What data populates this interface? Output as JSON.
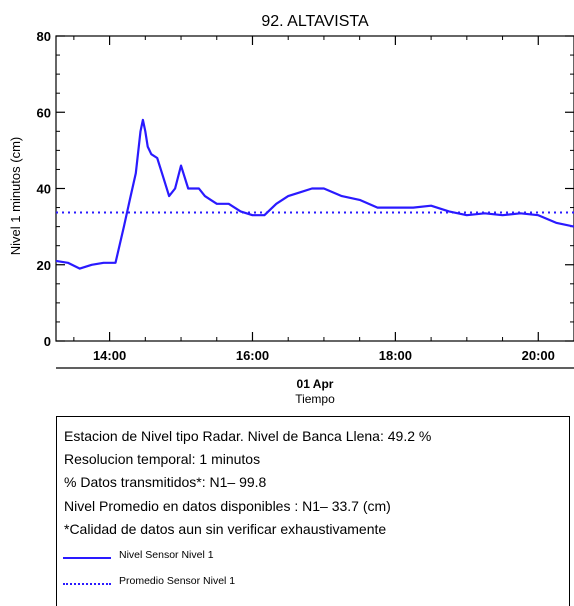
{
  "chart_data": {
    "type": "line",
    "title": "92. ALTAVISTA",
    "ylabel": "Nivel 1 minutos (cm)",
    "xlabel": "Tiempo",
    "date_label": "01 Apr",
    "xlim": [
      "13:15",
      "20:30"
    ],
    "ylim": [
      0,
      80
    ],
    "y_ticks": [
      "0",
      "20",
      "40",
      "60",
      "80"
    ],
    "x_ticks": [
      "14:00",
      "16:00",
      "18:00",
      "20:00"
    ],
    "grid": false,
    "series": [
      {
        "name": "Nivel Sensor Nivel 1",
        "style": "solid",
        "color": "#2a1aff",
        "x": [
          "13:15",
          "13:25",
          "13:35",
          "13:45",
          "13:55",
          "14:05",
          "14:12",
          "14:17",
          "14:22",
          "14:26",
          "14:28",
          "14:30",
          "14:32",
          "14:35",
          "14:40",
          "14:45",
          "14:50",
          "14:55",
          "15:00",
          "15:03",
          "15:06",
          "15:10",
          "15:15",
          "15:20",
          "15:25",
          "15:30",
          "15:40",
          "15:50",
          "16:00",
          "16:10",
          "16:20",
          "16:30",
          "16:40",
          "16:50",
          "17:00",
          "17:15",
          "17:30",
          "17:45",
          "18:00",
          "18:15",
          "18:30",
          "18:45",
          "19:00",
          "19:15",
          "19:30",
          "19:45",
          "20:00",
          "20:15",
          "20:30"
        ],
        "y": [
          21,
          20.5,
          19,
          20,
          20.5,
          20.5,
          30,
          37,
          44,
          55,
          58,
          55,
          51,
          49,
          48,
          43,
          38,
          40,
          46,
          43,
          40,
          40,
          40,
          38,
          37,
          36,
          36,
          34,
          33,
          33,
          36,
          38,
          39,
          40,
          40,
          38,
          37,
          35,
          35,
          35,
          35.5,
          34,
          33,
          33.5,
          33,
          33.5,
          33,
          31,
          30
        ]
      },
      {
        "name": "Promedio Sensor Nivel 1",
        "style": "dotted",
        "color": "#2a1aff",
        "x": [
          "13:15",
          "20:30"
        ],
        "y": [
          33.7,
          33.7
        ]
      }
    ]
  },
  "info": {
    "line1": "Estacion de Nivel tipo Radar. Nivel de Banca Llena: 49.2 %",
    "line2": "Resolucion temporal: 1 minutos",
    "line3": "% Datos transmitidos*: N1– 99.8",
    "line4": "Nivel Promedio en datos disponibles : N1– 33.7 (cm)",
    "line5": "*Calidad de datos aun sin verificar exhaustivamente",
    "legend": [
      {
        "label": "Nivel Sensor Nivel 1",
        "style": "solid",
        "color": "#2a1aff"
      },
      {
        "label": "Promedio Sensor Nivel 1",
        "style": "dotted",
        "color": "#2a1aff"
      }
    ]
  }
}
